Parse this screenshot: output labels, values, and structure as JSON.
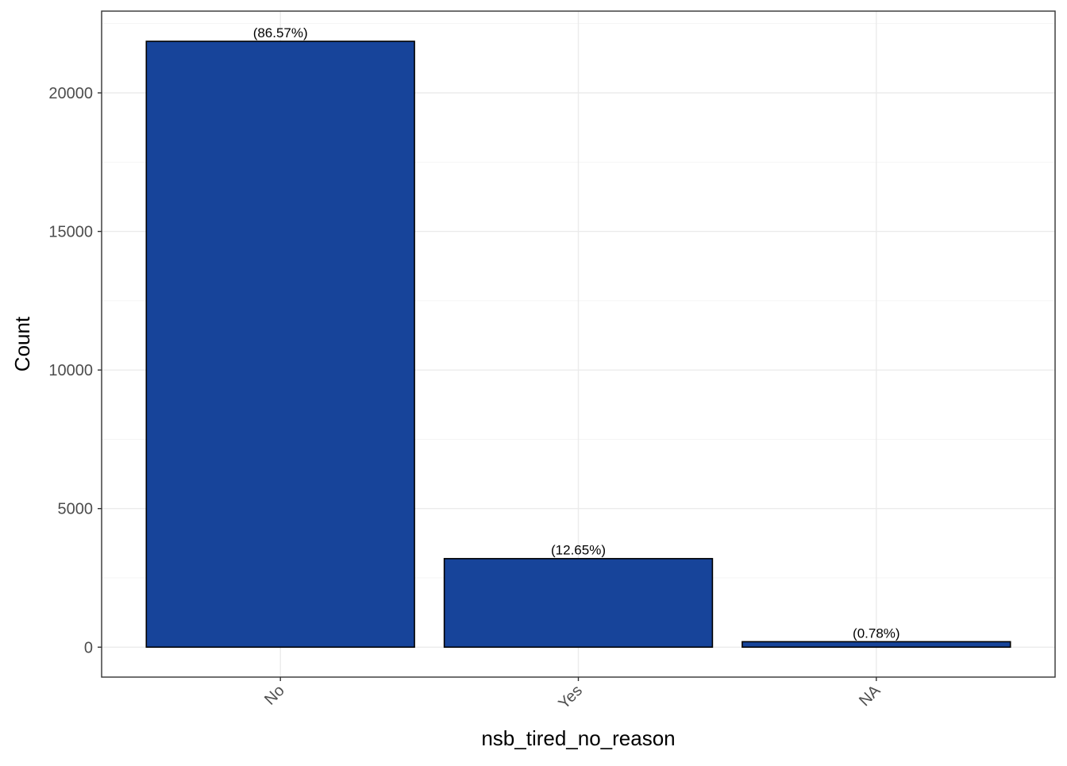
{
  "chart_data": {
    "type": "bar",
    "categories": [
      "No",
      "Yes",
      "NA"
    ],
    "values": [
      21860,
      3195,
      197
    ],
    "data_labels": [
      "(86.57%)",
      "(12.65%)",
      "(0.78%)"
    ],
    "title": "",
    "xlabel": "nsb_tired_no_reason",
    "ylabel": "Count",
    "ylim": [
      -1080,
      22950
    ],
    "yticks": [
      0,
      5000,
      10000,
      15000,
      20000
    ],
    "ytick_labels": [
      "0",
      "5000",
      "10000",
      "15000",
      "20000"
    ],
    "minor_yticks": [
      2500,
      7500,
      12500,
      17500,
      22500
    ],
    "grid": true,
    "bar_fill": "#17449a",
    "bar_outline": "#000000",
    "x_tick_rotation_deg": 45
  }
}
